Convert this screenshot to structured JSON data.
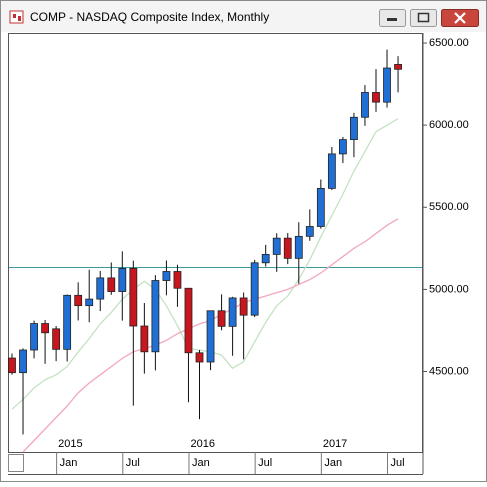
{
  "chart_data": {
    "type": "candlestick",
    "title": "COMP - NASDAQ Composite Index, Monthly",
    "categories": [
      null,
      null,
      null,
      null,
      "Jan",
      null,
      null,
      null,
      null,
      null,
      "Jul",
      null,
      null,
      null,
      null,
      null,
      "Jan",
      null,
      null,
      null,
      null,
      null,
      "Jul",
      null,
      null,
      null,
      null,
      null,
      "Jan",
      null,
      null,
      null,
      null,
      null,
      "Jul",
      null
    ],
    "year_labels": [
      null,
      null,
      null,
      null,
      "2015",
      null,
      null,
      null,
      null,
      null,
      null,
      null,
      null,
      null,
      null,
      null,
      "2016",
      null,
      null,
      null,
      null,
      null,
      null,
      null,
      null,
      null,
      null,
      null,
      "2017",
      null,
      null,
      null,
      null,
      null,
      null,
      null
    ],
    "open": [
      4582,
      4493,
      4631,
      4792,
      4760,
      4635,
      4964,
      4901,
      4941,
      5070,
      4987,
      5128,
      4777,
      4620,
      5054,
      5109,
      5007,
      4614,
      4558,
      4870,
      4775,
      4948,
      4843,
      5162,
      5213,
      5312,
      5189,
      5323,
      5383,
      5615,
      5825,
      5912,
      6048,
      6199,
      6140,
      6370
    ],
    "high": [
      4610,
      4641,
      4810,
      4814,
      4777,
      4969,
      5043,
      5120,
      5112,
      5164,
      5232,
      5175,
      4917,
      5087,
      5176,
      5150,
      5007,
      4631,
      4870,
      4970,
      4955,
      4981,
      5180,
      5271,
      5342,
      5343,
      5409,
      5487,
      5669,
      5867,
      5928,
      6075,
      6244,
      6341,
      6460,
      6420
    ],
    "low": [
      4480,
      4117,
      4580,
      4547,
      4563,
      4561,
      4811,
      4800,
      4868,
      4967,
      4810,
      4292,
      4487,
      4507,
      4964,
      4894,
      4313,
      4210,
      4508,
      4751,
      4596,
      4574,
      4832,
      5139,
      5107,
      5154,
      5034,
      5296,
      5370,
      5605,
      5769,
      5805,
      5996,
      6081,
      6107,
      6200
    ],
    "close": [
      4493,
      4631,
      4792,
      4736,
      4635,
      4964,
      4901,
      4941,
      5070,
      4987,
      5128,
      4777,
      4620,
      5054,
      5109,
      5007,
      4614,
      4558,
      4870,
      4775,
      4948,
      4843,
      5162,
      5213,
      5312,
      5189,
      5323,
      5383,
      5615,
      5825,
      5912,
      6048,
      6199,
      6140,
      6348,
      6340
    ],
    "up_color": "#1f6fd6",
    "down_color": "#c8161e",
    "overlays": [
      {
        "color": "#c3e3c3",
        "values": [
          4270,
          4330,
          4400,
          4450,
          4480,
          4530,
          4620,
          4700,
          4790,
          4860,
          4940,
          5000,
          5050,
          5000,
          4900,
          4780,
          4640,
          4630,
          4620,
          4600,
          4520,
          4560,
          4680,
          4800,
          4900,
          4960,
          5060,
          5180,
          5320,
          5450,
          5580,
          5720,
          5840,
          5960,
          6000,
          6040
        ]
      },
      {
        "color": "#f2a7bd",
        "values": [
          null,
          4010,
          4080,
          4150,
          4220,
          4290,
          4370,
          4430,
          4480,
          4530,
          4580,
          4620,
          4640,
          4660,
          4690,
          4730,
          4760,
          4790,
          4810,
          4850,
          4880,
          4920,
          4940,
          4960,
          4980,
          5000,
          5030,
          5060,
          5100,
          5150,
          5200,
          5250,
          5290,
          5340,
          5390,
          5430
        ]
      }
    ],
    "hline": 5133,
    "hline_color": "#3a9a9a",
    "ylim": [
      4010,
      6555
    ],
    "yticks": [
      {
        "value": 4500,
        "label": "4500.00"
      },
      {
        "value": 5000,
        "label": "5000.00"
      },
      {
        "value": 5500,
        "label": "5500.00"
      },
      {
        "value": 6000,
        "label": "6000.00"
      },
      {
        "value": 6500,
        "label": "6500.00"
      }
    ]
  }
}
